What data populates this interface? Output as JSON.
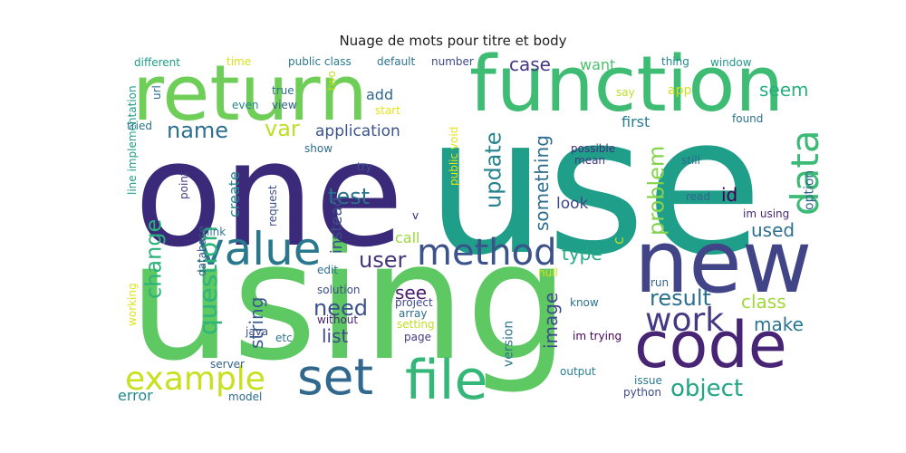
{
  "chart_data": {
    "type": "wordcloud",
    "title": "Nuage de mots pour titre et body",
    "words": [
      {
        "text": "use",
        "weight": 100,
        "color": "#1f9e89",
        "rotate": false
      },
      {
        "text": "using",
        "weight": 98,
        "color": "#5ec962",
        "rotate": false
      },
      {
        "text": "one",
        "weight": 85,
        "color": "#3b2a7a",
        "rotate": false
      },
      {
        "text": "return",
        "weight": 60,
        "color": "#6ece58",
        "rotate": false
      },
      {
        "text": "function",
        "weight": 58,
        "color": "#3fbc73",
        "rotate": false
      },
      {
        "text": "new",
        "weight": 55,
        "color": "#414487",
        "rotate": false
      },
      {
        "text": "code",
        "weight": 48,
        "color": "#482475",
        "rotate": false
      },
      {
        "text": "file",
        "weight": 42,
        "color": "#35b779",
        "rotate": false
      },
      {
        "text": "value",
        "weight": 40,
        "color": "#2a788e",
        "rotate": false
      },
      {
        "text": "set",
        "weight": 38,
        "color": "#31688e",
        "rotate": false
      },
      {
        "text": "method",
        "weight": 34,
        "color": "#3b528b",
        "rotate": false
      },
      {
        "text": "data",
        "weight": 32,
        "color": "#3bbb75",
        "rotate": true
      },
      {
        "text": "example",
        "weight": 30,
        "color": "#c8e020",
        "rotate": false
      },
      {
        "text": "work",
        "weight": 30,
        "color": "#443983",
        "rotate": false
      },
      {
        "text": "question",
        "weight": 26,
        "color": "#2fb47c",
        "rotate": true
      },
      {
        "text": "object",
        "weight": 22,
        "color": "#21a585",
        "rotate": false
      },
      {
        "text": "test",
        "weight": 20,
        "color": "#2c728e",
        "rotate": false
      },
      {
        "text": "name",
        "weight": 20,
        "color": "#2e6f8e",
        "rotate": false
      },
      {
        "text": "user",
        "weight": 20,
        "color": "#46337e",
        "rotate": false
      },
      {
        "text": "var",
        "weight": 20,
        "color": "#bddf26",
        "rotate": false
      },
      {
        "text": "result",
        "weight": 20,
        "color": "#2d708e",
        "rotate": false
      },
      {
        "text": "need",
        "weight": 20,
        "color": "#3b528b",
        "rotate": false
      },
      {
        "text": "update",
        "weight": 20,
        "color": "#26828e",
        "rotate": true
      },
      {
        "text": "problem",
        "weight": 20,
        "color": "#84d44b",
        "rotate": true
      },
      {
        "text": "change",
        "weight": 20,
        "color": "#2db27d",
        "rotate": true
      },
      {
        "text": "image",
        "weight": 18,
        "color": "#3e4989",
        "rotate": true
      },
      {
        "text": "see",
        "weight": 18,
        "color": "#481a6c",
        "rotate": false
      },
      {
        "text": "string",
        "weight": 18,
        "color": "#38598c",
        "rotate": true
      },
      {
        "text": "class",
        "weight": 18,
        "color": "#a0da39",
        "rotate": false
      },
      {
        "text": "used",
        "weight": 18,
        "color": "#2e6e8e",
        "rotate": false
      },
      {
        "text": "id",
        "weight": 18,
        "color": "#440154",
        "rotate": false
      },
      {
        "text": "make",
        "weight": 16,
        "color": "#2a768e",
        "rotate": false
      },
      {
        "text": "type",
        "weight": 16,
        "color": "#22a884",
        "rotate": false
      },
      {
        "text": "something",
        "weight": 16,
        "color": "#2e6d8e",
        "rotate": true
      },
      {
        "text": "case",
        "weight": 16,
        "color": "#453781",
        "rotate": false
      },
      {
        "text": "seem",
        "weight": 16,
        "color": "#29af7f",
        "rotate": false
      },
      {
        "text": "list",
        "weight": 16,
        "color": "#3e4a89",
        "rotate": false
      },
      {
        "text": "application",
        "weight": 15,
        "color": "#3a548c",
        "rotate": false
      },
      {
        "text": "look",
        "weight": 15,
        "color": "#3f4788",
        "rotate": false
      },
      {
        "text": "instead",
        "weight": 14,
        "color": "#3d4e8a",
        "rotate": true
      },
      {
        "text": "error",
        "weight": 14,
        "color": "#238a8d",
        "rotate": false
      },
      {
        "text": "first",
        "weight": 14,
        "color": "#287c8e",
        "rotate": false
      },
      {
        "text": "create",
        "weight": 14,
        "color": "#25858e",
        "rotate": true
      },
      {
        "text": "c",
        "weight": 14,
        "color": "#b5de2b",
        "rotate": true
      },
      {
        "text": "call",
        "weight": 14,
        "color": "#9bd93c",
        "rotate": false
      },
      {
        "text": "want",
        "weight": 14,
        "color": "#4ac16d",
        "rotate": false
      },
      {
        "text": "add",
        "weight": 14,
        "color": "#31678e",
        "rotate": false
      },
      {
        "text": "version",
        "weight": 12,
        "color": "#2b758e",
        "rotate": true
      },
      {
        "text": "option",
        "weight": 12,
        "color": "#33628d",
        "rotate": true
      },
      {
        "text": "app",
        "weight": 12,
        "color": "#d0e11c",
        "rotate": false
      },
      {
        "text": "im using",
        "weight": 10,
        "color": "#482878",
        "rotate": false
      },
      {
        "text": "different",
        "weight": 10,
        "color": "#1f9a8a",
        "rotate": false
      },
      {
        "text": "time",
        "weight": 10,
        "color": "#d8e219",
        "rotate": false
      },
      {
        "text": "public class",
        "weight": 10,
        "color": "#2a788e",
        "rotate": false
      },
      {
        "text": "default",
        "weight": 10,
        "color": "#2c738e",
        "rotate": false
      },
      {
        "text": "number",
        "weight": 10,
        "color": "#3e4989",
        "rotate": false
      },
      {
        "text": "thing",
        "weight": 10,
        "color": "#24878e",
        "rotate": false
      },
      {
        "text": "window",
        "weight": 10,
        "color": "#1f968b",
        "rotate": false
      },
      {
        "text": "url",
        "weight": 10,
        "color": "#2e6e8e",
        "rotate": true
      },
      {
        "text": "line implementation",
        "weight": 10,
        "color": "#1e9c89",
        "rotate": true
      },
      {
        "text": "tried",
        "weight": 10,
        "color": "#2c728e",
        "rotate": false
      },
      {
        "text": "even",
        "weight": 10,
        "color": "#25848e",
        "rotate": false
      },
      {
        "text": "true",
        "weight": 10,
        "color": "#2d708e",
        "rotate": false
      },
      {
        "text": "view",
        "weight": 10,
        "color": "#34618d",
        "rotate": false
      },
      {
        "text": "two",
        "weight": 10,
        "color": "#c0df25",
        "rotate": true
      },
      {
        "text": "start",
        "weight": 10,
        "color": "#e2e418",
        "rotate": false
      },
      {
        "text": "say",
        "weight": 10,
        "color": "#bddf26",
        "rotate": false
      },
      {
        "text": "found",
        "weight": 10,
        "color": "#2c738e",
        "rotate": false
      },
      {
        "text": "show",
        "weight": 10,
        "color": "#2e6d8e",
        "rotate": false
      },
      {
        "text": "point",
        "weight": 10,
        "color": "#443983",
        "rotate": true
      },
      {
        "text": "try",
        "weight": 10,
        "color": "#3b528b",
        "rotate": false
      },
      {
        "text": "public void",
        "weight": 10,
        "color": "#e5e419",
        "rotate": true
      },
      {
        "text": "possible",
        "weight": 10,
        "color": "#472d7b",
        "rotate": false
      },
      {
        "text": "mean",
        "weight": 10,
        "color": "#453882",
        "rotate": false
      },
      {
        "text": "still",
        "weight": 10,
        "color": "#2f6b8e",
        "rotate": false
      },
      {
        "text": "read",
        "weight": 10,
        "color": "#31668e",
        "rotate": false
      },
      {
        "text": "request",
        "weight": 10,
        "color": "#3b518b",
        "rotate": true
      },
      {
        "text": "v",
        "weight": 10,
        "color": "#481f70",
        "rotate": false
      },
      {
        "text": "link",
        "weight": 10,
        "color": "#2a788e",
        "rotate": false
      },
      {
        "text": "database",
        "weight": 10,
        "color": "#38598c",
        "rotate": true
      },
      {
        "text": "edit",
        "weight": 10,
        "color": "#2d708e",
        "rotate": false
      },
      {
        "text": "solution",
        "weight": 10,
        "color": "#3e4c8a",
        "rotate": false
      },
      {
        "text": "without",
        "weight": 10,
        "color": "#482576",
        "rotate": false
      },
      {
        "text": "project",
        "weight": 10,
        "color": "#3f4889",
        "rotate": false
      },
      {
        "text": "array",
        "weight": 10,
        "color": "#2e6e8e",
        "rotate": false
      },
      {
        "text": "setting",
        "weight": 10,
        "color": "#c2df23",
        "rotate": false
      },
      {
        "text": "page",
        "weight": 10,
        "color": "#443a83",
        "rotate": false
      },
      {
        "text": "null",
        "weight": 10,
        "color": "#d5e21a",
        "rotate": false
      },
      {
        "text": "run",
        "weight": 10,
        "color": "#33638d",
        "rotate": false
      },
      {
        "text": "know",
        "weight": 10,
        "color": "#2c728e",
        "rotate": false
      },
      {
        "text": "im trying",
        "weight": 10,
        "color": "#440154",
        "rotate": false
      },
      {
        "text": "working",
        "weight": 10,
        "color": "#dde318",
        "rotate": true
      },
      {
        "text": "java",
        "weight": 10,
        "color": "#3b528b",
        "rotate": false
      },
      {
        "text": "etc",
        "weight": 10,
        "color": "#2c738e",
        "rotate": false
      },
      {
        "text": "server",
        "weight": 10,
        "color": "#34618d",
        "rotate": false
      },
      {
        "text": "model",
        "weight": 10,
        "color": "#2e6e8e",
        "rotate": false
      },
      {
        "text": "output",
        "weight": 10,
        "color": "#287d8e",
        "rotate": false
      },
      {
        "text": "issue",
        "weight": 10,
        "color": "#2a788e",
        "rotate": false
      },
      {
        "text": "python",
        "weight": 10,
        "color": "#3e4a89",
        "rotate": false
      }
    ]
  }
}
